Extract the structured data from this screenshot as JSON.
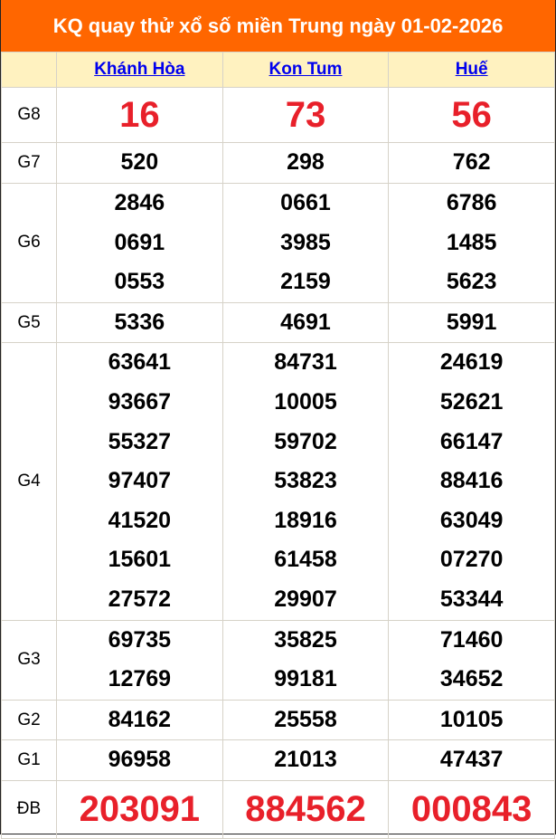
{
  "title": "KQ quay thử xổ số miền Trung ngày 01-02-2026",
  "provinces": [
    "Khánh Hòa",
    "Kon Tum",
    "Huế"
  ],
  "colors": {
    "header_bg": "#ff6600",
    "subheader_bg": "#fff2c0",
    "highlight": "#e8202a",
    "link": "#0000ee"
  },
  "prizes": [
    {
      "label": "G8",
      "style": "big",
      "values": [
        [
          "16"
        ],
        [
          "73"
        ],
        [
          "56"
        ]
      ]
    },
    {
      "label": "G7",
      "style": "num",
      "values": [
        [
          "520"
        ],
        [
          "298"
        ],
        [
          "762"
        ]
      ]
    },
    {
      "label": "G6",
      "style": "num",
      "values": [
        [
          "2846",
          "0691",
          "0553"
        ],
        [
          "0661",
          "3985",
          "2159"
        ],
        [
          "6786",
          "1485",
          "5623"
        ]
      ]
    },
    {
      "label": "G5",
      "style": "num",
      "values": [
        [
          "5336"
        ],
        [
          "4691"
        ],
        [
          "5991"
        ]
      ]
    },
    {
      "label": "G4",
      "style": "num",
      "values": [
        [
          "63641",
          "93667",
          "55327",
          "97407",
          "41520",
          "15601",
          "27572"
        ],
        [
          "84731",
          "10005",
          "59702",
          "53823",
          "18916",
          "61458",
          "29907"
        ],
        [
          "24619",
          "52621",
          "66147",
          "88416",
          "63049",
          "07270",
          "53344"
        ]
      ]
    },
    {
      "label": "G3",
      "style": "num",
      "values": [
        [
          "69735",
          "12769"
        ],
        [
          "35825",
          "99181"
        ],
        [
          "71460",
          "34652"
        ]
      ]
    },
    {
      "label": "G2",
      "style": "num",
      "values": [
        [
          "84162"
        ],
        [
          "25558"
        ],
        [
          "10105"
        ]
      ]
    },
    {
      "label": "G1",
      "style": "num",
      "values": [
        [
          "96958"
        ],
        [
          "21013"
        ],
        [
          "47437"
        ]
      ]
    },
    {
      "label": "ĐB",
      "style": "db",
      "values": [
        [
          "203091"
        ],
        [
          "884562"
        ],
        [
          "000843"
        ]
      ]
    }
  ]
}
